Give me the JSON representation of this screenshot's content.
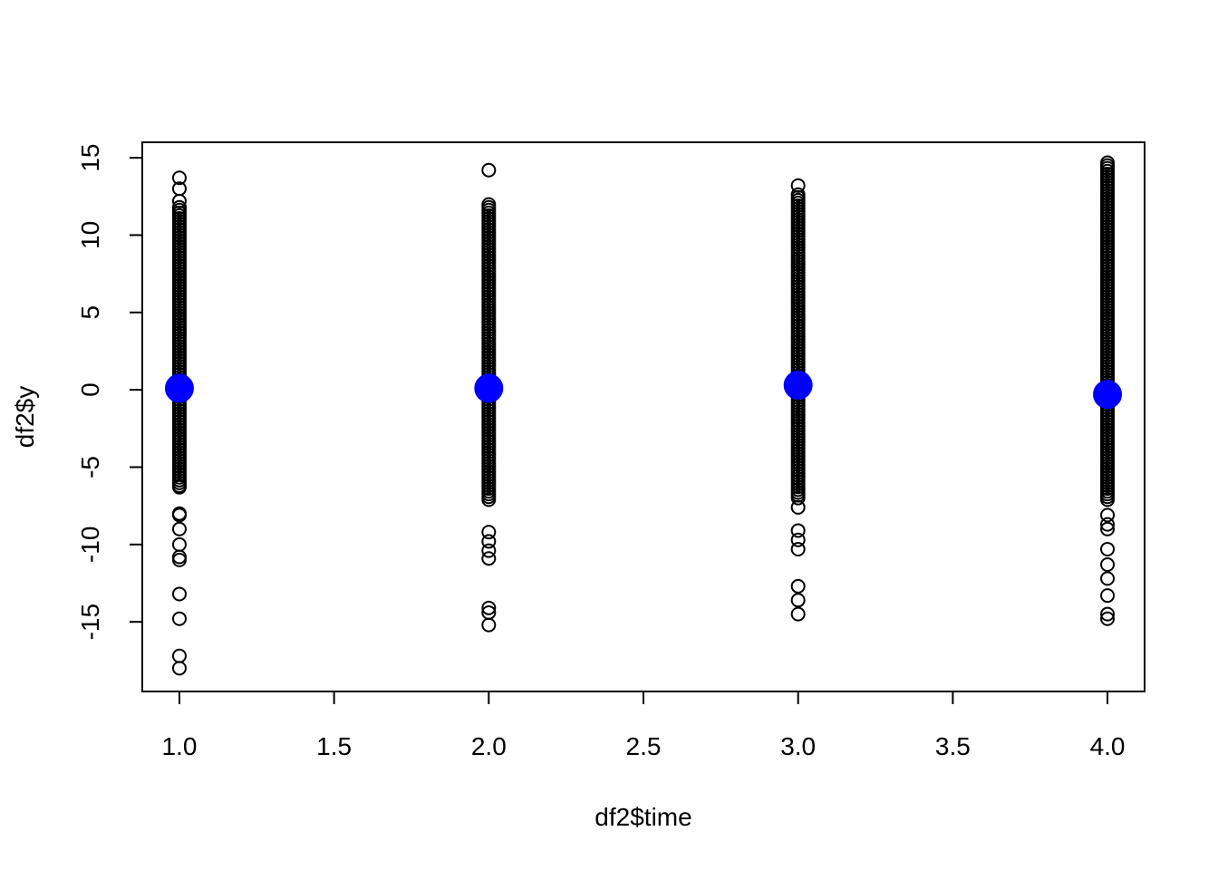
{
  "chart_data": {
    "type": "scatter",
    "title": "",
    "xlabel": "df2$time",
    "ylabel": "df2$y",
    "xlim": [
      0.88,
      4.12
    ],
    "ylim": [
      -19.5,
      16
    ],
    "x_ticks": [
      "1.0",
      "1.5",
      "2.0",
      "2.5",
      "3.0",
      "3.5",
      "4.0"
    ],
    "y_ticks": [
      "-15",
      "-10",
      "-5",
      "0",
      "5",
      "10",
      "15"
    ],
    "grid": false,
    "legend": "none",
    "colors": {
      "points": "#000000",
      "means": "#0000ff",
      "axis": "#000000"
    },
    "series": [
      {
        "x": 1,
        "band": [
          -6.2,
          11.8
        ],
        "outliers": [
          13.7,
          13.0,
          12.2,
          -6.3,
          -8.0,
          -8.1,
          -9.0,
          -10.0,
          -10.8,
          -11.0,
          -13.2,
          -14.8,
          -17.2,
          -18.0
        ],
        "mean": 0.1
      },
      {
        "x": 2,
        "band": [
          -7.1,
          12.0
        ],
        "outliers": [
          14.2,
          -9.2,
          -9.8,
          -10.4,
          -10.9,
          -14.1,
          -14.4,
          -15.2
        ],
        "mean": 0.1
      },
      {
        "x": 3,
        "band": [
          -7.0,
          12.7
        ],
        "outliers": [
          13.2,
          -7.6,
          -9.1,
          -9.7,
          -10.3,
          -12.7,
          -13.6,
          -14.5
        ],
        "mean": 0.3
      },
      {
        "x": 4,
        "band": [
          -7.1,
          14.8
        ],
        "outliers": [
          -8.1,
          -8.7,
          -9.0,
          -10.3,
          -11.3,
          -12.2,
          -13.3,
          -14.5,
          -14.8
        ],
        "mean": -0.3
      }
    ]
  }
}
